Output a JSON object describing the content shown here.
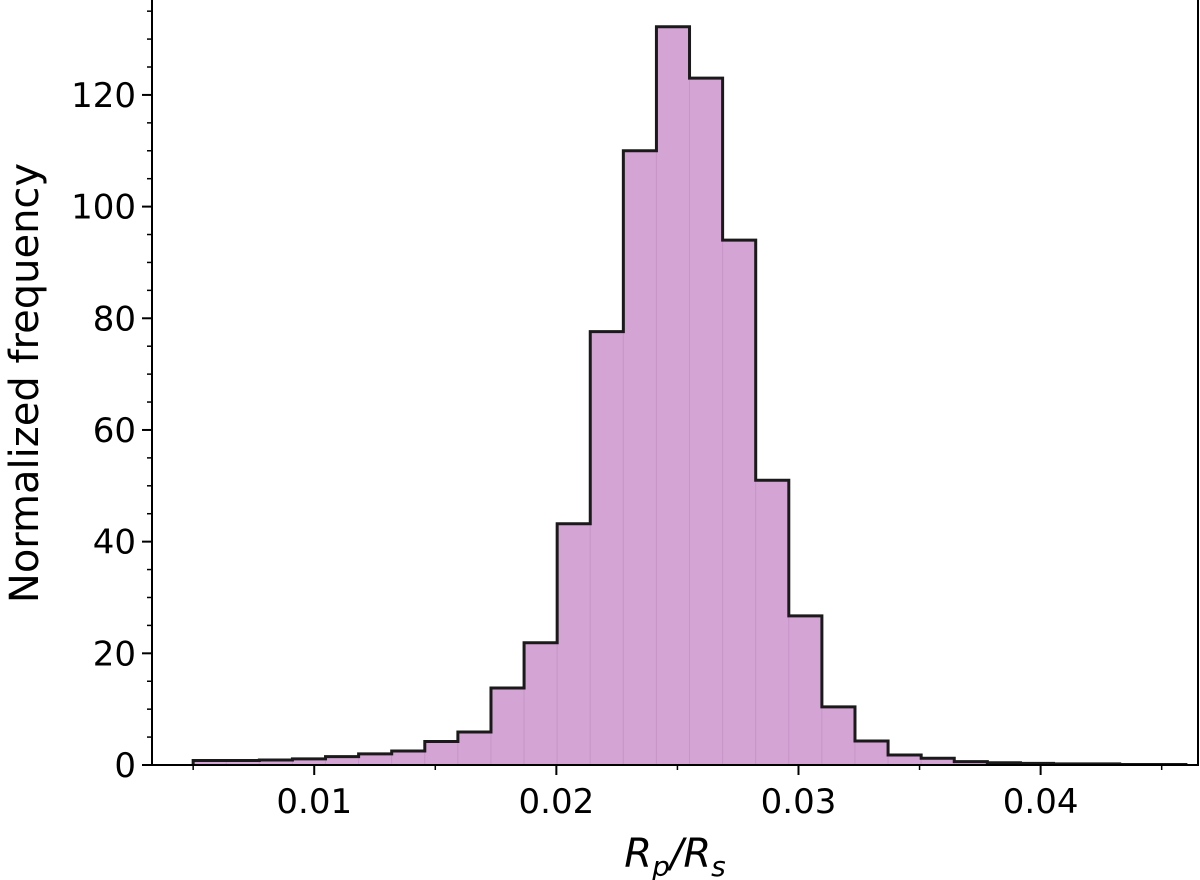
{
  "chart_data": {
    "type": "bar",
    "subtype": "histogram",
    "bin_start": 0.005,
    "bin_width": 0.0013666667,
    "values": [
      0.8,
      0.8,
      0.9,
      1.1,
      1.5,
      2.0,
      2.5,
      4.2,
      5.9,
      13.8,
      21.9,
      43.2,
      77.6,
      110.0,
      132.2,
      123.0,
      94.0,
      51.0,
      26.7,
      10.4,
      4.3,
      1.8,
      1.2,
      0.6,
      0.4,
      0.3,
      0.2,
      0.2,
      0.1,
      0.1
    ],
    "xlim": [
      0.0033,
      0.0465
    ],
    "ylim": [
      0,
      137
    ],
    "xticks": [
      0.01,
      0.02,
      0.03,
      0.04
    ],
    "xtick_labels": [
      "0.01",
      "0.02",
      "0.03",
      "0.04"
    ],
    "yticks": [
      0,
      20,
      40,
      60,
      80,
      100,
      120
    ],
    "ytick_labels": [
      "0",
      "20",
      "40",
      "60",
      "80",
      "100",
      "120"
    ],
    "xlabel": {
      "main": "R",
      "sub1": "p",
      "slash": "/R",
      "sub2": "s"
    },
    "ylabel": "Normalized frequency",
    "grid": false,
    "colors": {
      "fill": "#d4a5d4",
      "bin_edge": "#c796c7",
      "outline": "#1a1a1a"
    }
  }
}
